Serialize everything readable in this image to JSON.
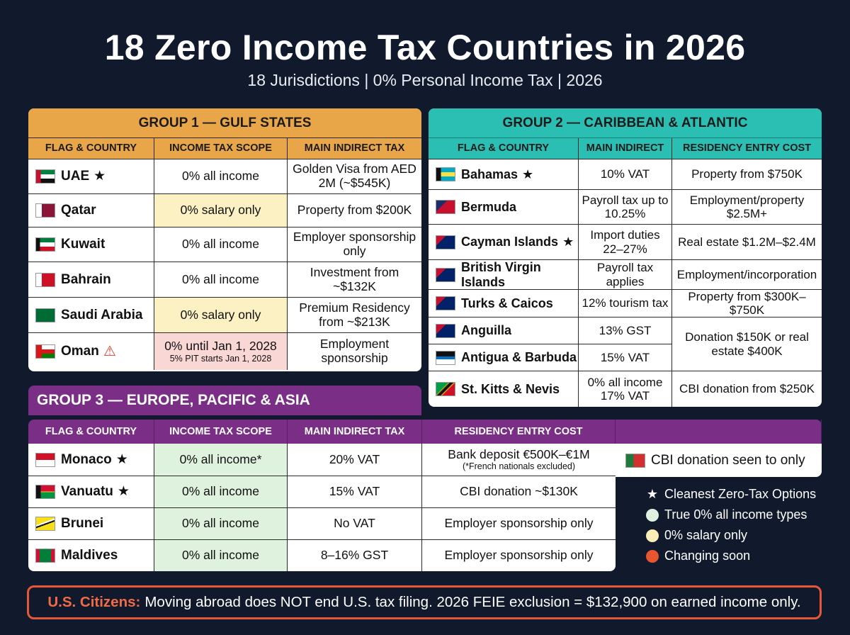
{
  "title": "18 Zero Income Tax Countries in 2026",
  "subtitle": "18 Jurisdictions | 0% Personal Income Tax | 2026",
  "colors": {
    "background": "#111a2c",
    "gulf": "#e9a649",
    "caribbean": "#2bbfb3",
    "europe": "#7a2e86",
    "green": "#def2dd",
    "yellow": "#fbf1c3",
    "pink": "#f9d7d4",
    "alert": "#e6573a"
  },
  "group1": {
    "title": "GROUP 1 — GULF STATES",
    "headers": [
      "FLAG & COUNTRY",
      "INCOME TAX SCOPE",
      "MAIN INDIRECT TAX"
    ],
    "rows": [
      {
        "flag": "uae-flag",
        "country": "UAE",
        "star": "★",
        "scope": "0% all income",
        "indirect": "Golden Visa from AED 2M (~$545K)"
      },
      {
        "flag": "qatar-flag",
        "country": "Qatar",
        "scope": "0% salary only",
        "indirect": "Property from $200K"
      },
      {
        "flag": "kuwait-flag",
        "country": "Kuwait",
        "scope": "0% all income",
        "indirect": "Employer sponsorship only"
      },
      {
        "flag": "bahrain-flag",
        "country": "Bahrain",
        "scope": "0% all income",
        "indirect": "Investment from ~$132K"
      },
      {
        "flag": "saudi-flag",
        "country": "Saudi Arabia",
        "scope": "0% salary only",
        "indirect": "Premium Residency from ~$213K"
      },
      {
        "flag": "oman-flag",
        "country": "Oman",
        "warn": "⚠",
        "scope": "0% until Jan 1, 2028",
        "scope_note": "5% PIT starts Jan 1, 2028",
        "indirect": "Employment sponsorship"
      }
    ]
  },
  "group2": {
    "title": "GROUP 2 — CARIBBEAN & ATLANTIC",
    "headers": [
      "FLAG & COUNTRY",
      "MAIN INDIRECT",
      "RESIDENCY ENTRY COST"
    ],
    "rows": [
      {
        "flag": "bahamas-flag",
        "country": "Bahamas",
        "star": "★",
        "indirect": "10% VAT",
        "cost": "Property from $750K"
      },
      {
        "flag": "bermuda-flag",
        "country": "Bermuda",
        "indirect": "Payroll tax up to 10.25%",
        "cost": "Employment/property $2.5M+"
      },
      {
        "flag": "cayman-flag",
        "country": "Cayman Islands",
        "star": "★",
        "indirect": "Import duties 22–27%",
        "cost": "Real estate $1.2M–$2.4M"
      },
      {
        "flag": "bvi-flag",
        "country": "British Virgin Islands",
        "indirect": "Payroll tax applies",
        "cost": "Employment/incorporation"
      },
      {
        "flag": "turks-flag",
        "country": "Turks & Caicos",
        "indirect": "12% tourism tax",
        "cost": "Property from $300K–$750K"
      },
      {
        "flag": "anguilla-flag",
        "country": "Anguilla",
        "indirect": "13% GST",
        "cost": "Donation $150K or real estate $400K"
      },
      {
        "flag": "antigua-flag",
        "country": "Antigua & Barbuda",
        "indirect": "15% VAT"
      },
      {
        "flag": "stkitts-flag",
        "country": "St. Kitts & Nevis",
        "indirect": "0% all income 17% VAT",
        "cost": "CBI donation from $250K"
      }
    ]
  },
  "group3": {
    "title": "GROUP 3 — EUROPE, PACIFIC & ASIA",
    "headers": [
      "FLAG & COUNTRY",
      "INCOME TAX SCOPE",
      "MAIN INDIRECT TAX",
      "RESIDENCY ENTRY COST",
      ""
    ],
    "rows": [
      {
        "flag": "monaco-flag",
        "country": "Monaco",
        "star": "★",
        "scope": "0% all income*",
        "indirect": "20% VAT",
        "cost": "Bank deposit €500K–€1M",
        "cost_note": "(*French nationals excluded)"
      },
      {
        "flag": "vanuatu-flag",
        "country": "Vanuatu",
        "star": "★",
        "scope": "0% all income",
        "indirect": "15% VAT",
        "cost": "CBI donation ~$130K"
      },
      {
        "flag": "brunei-flag",
        "country": "Brunei",
        "scope": "0% all income",
        "indirect": "No VAT",
        "cost": "Employer sponsorship only"
      },
      {
        "flag": "maldives-flag",
        "country": "Maldives",
        "scope": "0% all income",
        "indirect": "8–16% GST",
        "cost": "Employer sponsorship only"
      }
    ],
    "side_note": "CBI donation seen to only"
  },
  "legend": [
    {
      "icon": "star-icon",
      "label": "Cleanest Zero-Tax Options"
    },
    {
      "icon": "dot-green",
      "color": "#dff2e0",
      "label": "True 0% all income types"
    },
    {
      "icon": "dot-yellow",
      "color": "#faedb6",
      "label": "0% salary only"
    },
    {
      "icon": "dot-red",
      "color": "#e8552f",
      "label": "Changing soon"
    }
  ],
  "footer": {
    "lead": "U.S. Citizens:",
    "text": "Moving abroad does NOT end U.S. tax filing. 2026 FEIE exclusion = $132,900 on earned income only."
  }
}
